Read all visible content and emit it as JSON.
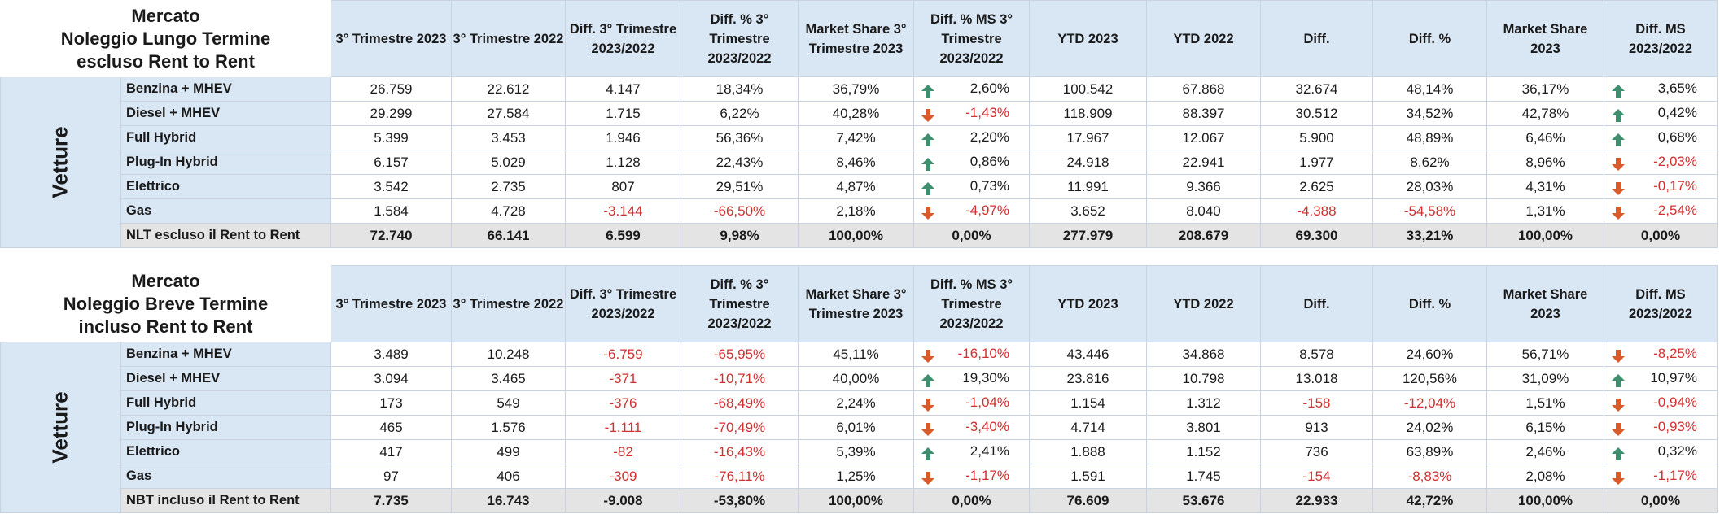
{
  "colors": {
    "header_fill": "#d9e6f4",
    "total_fill": "#e4e4e4",
    "negative": "#d03030",
    "arrow_up": "#3f8f6f",
    "arrow_down": "#d95b2b"
  },
  "headers": {
    "q3_2023": "3° Trimestre 2023",
    "q3_2022": "3° Trimestre 2022",
    "diff_q3": "Diff. 3° Trimestre 2023/2022",
    "diffpct_q3": "Diff. % 3° Trimestre 2023/2022",
    "ms_q3": "Market Share 3° Trimestre 2023",
    "diffms_q3": "Diff. % MS 3° Trimestre 2023/2022",
    "ytd2023": "YTD 2023",
    "ytd2022": "YTD 2022",
    "diff": "Diff.",
    "diffpct": "Diff. %",
    "ms": "Market Share 2023",
    "diffms": "Diff. MS 2023/2022"
  },
  "tables": [
    {
      "title_lines": [
        "Mercato",
        "Noleggio Lungo Termine",
        "escluso Rent to Rent"
      ],
      "group_label": "Vetture",
      "rows": [
        {
          "label": "Benzina + MHEV",
          "q3_2023": "26.759",
          "q3_2022": "22.612",
          "diff": "4.147",
          "diffpct": "18,34%",
          "ms": "36,79%",
          "dms_icon": "arrow-up-icon",
          "dms": "2,60%",
          "ytd23": "100.542",
          "ytd22": "67.868",
          "ydiff": "32.674",
          "ydiffpct": "48,14%",
          "yms": "36,17%",
          "ydms_icon": "arrow-up-icon",
          "ydms": "3,65%"
        },
        {
          "label": "Diesel + MHEV",
          "q3_2023": "29.299",
          "q3_2022": "27.584",
          "diff": "1.715",
          "diffpct": "6,22%",
          "ms": "40,28%",
          "dms_icon": "arrow-down-icon",
          "dms": "-1,43%",
          "ytd23": "118.909",
          "ytd22": "88.397",
          "ydiff": "30.512",
          "ydiffpct": "34,52%",
          "yms": "42,78%",
          "ydms_icon": "arrow-up-icon",
          "ydms": "0,42%"
        },
        {
          "label": "Full Hybrid",
          "q3_2023": "5.399",
          "q3_2022": "3.453",
          "diff": "1.946",
          "diffpct": "56,36%",
          "ms": "7,42%",
          "dms_icon": "arrow-up-icon",
          "dms": "2,20%",
          "ytd23": "17.967",
          "ytd22": "12.067",
          "ydiff": "5.900",
          "ydiffpct": "48,89%",
          "yms": "6,46%",
          "ydms_icon": "arrow-up-icon",
          "ydms": "0,68%"
        },
        {
          "label": "Plug-In Hybrid",
          "q3_2023": "6.157",
          "q3_2022": "5.029",
          "diff": "1.128",
          "diffpct": "22,43%",
          "ms": "8,46%",
          "dms_icon": "arrow-up-icon",
          "dms": "0,86%",
          "ytd23": "24.918",
          "ytd22": "22.941",
          "ydiff": "1.977",
          "ydiffpct": "8,62%",
          "yms": "8,96%",
          "ydms_icon": "arrow-down-icon",
          "ydms": "-2,03%"
        },
        {
          "label": "Elettrico",
          "q3_2023": "3.542",
          "q3_2022": "2.735",
          "diff": "807",
          "diffpct": "29,51%",
          "ms": "4,87%",
          "dms_icon": "arrow-up-icon",
          "dms": "0,73%",
          "ytd23": "11.991",
          "ytd22": "9.366",
          "ydiff": "2.625",
          "ydiffpct": "28,03%",
          "yms": "4,31%",
          "ydms_icon": "arrow-down-icon",
          "ydms": "-0,17%"
        },
        {
          "label": "Gas",
          "q3_2023": "1.584",
          "q3_2022": "4.728",
          "diff": "-3.144",
          "diffpct": "-66,50%",
          "ms": "2,18%",
          "dms_icon": "arrow-down-icon",
          "dms": "-4,97%",
          "ytd23": "3.652",
          "ytd22": "8.040",
          "ydiff": "-4.388",
          "ydiffpct": "-54,58%",
          "yms": "1,31%",
          "ydms_icon": "arrow-down-icon",
          "ydms": "-2,54%"
        }
      ],
      "total": {
        "label": "NLT escluso il Rent to Rent",
        "q3_2023": "72.740",
        "q3_2022": "66.141",
        "diff": "6.599",
        "diffpct": "9,98%",
        "ms": "100,00%",
        "dms": "0,00%",
        "ytd23": "277.979",
        "ytd22": "208.679",
        "ydiff": "69.300",
        "ydiffpct": "33,21%",
        "yms": "100,00%",
        "ydms": "0,00%"
      }
    },
    {
      "title_lines": [
        "Mercato",
        "Noleggio Breve Termine",
        "incluso Rent to Rent"
      ],
      "group_label": "Vetture",
      "rows": [
        {
          "label": "Benzina + MHEV",
          "q3_2023": "3.489",
          "q3_2022": "10.248",
          "diff": "-6.759",
          "diffpct": "-65,95%",
          "ms": "45,11%",
          "dms_icon": "arrow-down-icon",
          "dms": "-16,10%",
          "ytd23": "43.446",
          "ytd22": "34.868",
          "ydiff": "8.578",
          "ydiffpct": "24,60%",
          "yms": "56,71%",
          "ydms_icon": "arrow-down-icon",
          "ydms": "-8,25%"
        },
        {
          "label": "Diesel + MHEV",
          "q3_2023": "3.094",
          "q3_2022": "3.465",
          "diff": "-371",
          "diffpct": "-10,71%",
          "ms": "40,00%",
          "dms_icon": "arrow-up-icon",
          "dms": "19,30%",
          "ytd23": "23.816",
          "ytd22": "10.798",
          "ydiff": "13.018",
          "ydiffpct": "120,56%",
          "yms": "31,09%",
          "ydms_icon": "arrow-up-icon",
          "ydms": "10,97%"
        },
        {
          "label": "Full Hybrid",
          "q3_2023": "173",
          "q3_2022": "549",
          "diff": "-376",
          "diffpct": "-68,49%",
          "ms": "2,24%",
          "dms_icon": "arrow-down-icon",
          "dms": "-1,04%",
          "ytd23": "1.154",
          "ytd22": "1.312",
          "ydiff": "-158",
          "ydiffpct": "-12,04%",
          "yms": "1,51%",
          "ydms_icon": "arrow-down-icon",
          "ydms": "-0,94%"
        },
        {
          "label": "Plug-In Hybrid",
          "q3_2023": "465",
          "q3_2022": "1.576",
          "diff": "-1.111",
          "diffpct": "-70,49%",
          "ms": "6,01%",
          "dms_icon": "arrow-down-icon",
          "dms": "-3,40%",
          "ytd23": "4.714",
          "ytd22": "3.801",
          "ydiff": "913",
          "ydiffpct": "24,02%",
          "yms": "6,15%",
          "ydms_icon": "arrow-down-icon",
          "ydms": "-0,93%"
        },
        {
          "label": "Elettrico",
          "q3_2023": "417",
          "q3_2022": "499",
          "diff": "-82",
          "diffpct": "-16,43%",
          "ms": "5,39%",
          "dms_icon": "arrow-up-icon",
          "dms": "2,41%",
          "ytd23": "1.888",
          "ytd22": "1.152",
          "ydiff": "736",
          "ydiffpct": "63,89%",
          "yms": "2,46%",
          "ydms_icon": "arrow-up-icon",
          "ydms": "0,32%"
        },
        {
          "label": "Gas",
          "q3_2023": "97",
          "q3_2022": "406",
          "diff": "-309",
          "diffpct": "-76,11%",
          "ms": "1,25%",
          "dms_icon": "arrow-down-icon",
          "dms": "-1,17%",
          "ytd23": "1.591",
          "ytd22": "1.745",
          "ydiff": "-154",
          "ydiffpct": "-8,83%",
          "yms": "2,08%",
          "ydms_icon": "arrow-down-icon",
          "ydms": "-1,17%"
        }
      ],
      "total": {
        "label": "NBT incluso il Rent to Rent",
        "q3_2023": "7.735",
        "q3_2022": "16.743",
        "diff": "-9.008",
        "diffpct": "-53,80%",
        "ms": "100,00%",
        "dms": "0,00%",
        "ytd23": "76.609",
        "ytd22": "53.676",
        "ydiff": "22.933",
        "ydiffpct": "42,72%",
        "yms": "100,00%",
        "ydms": "0,00%"
      }
    }
  ]
}
